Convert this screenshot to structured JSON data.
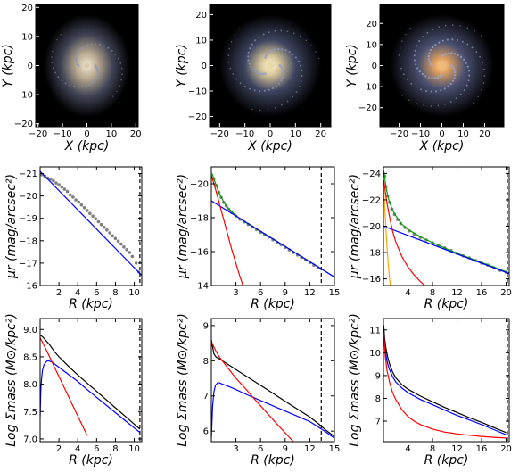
{
  "images": [
    {
      "xlabel": "X (kpc)",
      "ylabel": "Y (kpc)",
      "xticks": [
        "−20",
        "−10",
        "0",
        "10",
        "20"
      ],
      "yticks": [
        "20",
        "10",
        "0",
        "−10",
        "−20"
      ],
      "xlim": [
        -21,
        21
      ],
      "ylim": [
        -21,
        21
      ],
      "tickvals_x": [
        -20,
        -10,
        0,
        10,
        20
      ],
      "tickvals_y": [
        20,
        10,
        0,
        -10,
        -20
      ],
      "core_color": "#d8c9a8",
      "arm_color": "#8a96b8"
    },
    {
      "xlabel": "X (kpc)",
      "ylabel": "Y (kpc)",
      "xticks": [
        "−20",
        "−10",
        "0",
        "10",
        "20"
      ],
      "yticks": [
        "20",
        "10",
        "0",
        "−10",
        "−20"
      ],
      "xlim": [
        -24,
        24
      ],
      "ylim": [
        -24,
        24
      ],
      "tickvals_x": [
        -20,
        -10,
        0,
        10,
        20
      ],
      "tickvals_y": [
        20,
        10,
        0,
        -10,
        -20
      ],
      "core_color": "#e8d9a8",
      "arm_color": "#8e9cc4"
    },
    {
      "xlabel": "X (kpc)",
      "ylabel": "Y (kpc)",
      "xticks": [
        "−20",
        "−10",
        "0",
        "10",
        "20"
      ],
      "yticks": [
        "20",
        "10",
        "0",
        "−10",
        "−20"
      ],
      "xlim": [
        -29,
        29
      ],
      "ylim": [
        -29,
        29
      ],
      "tickvals_x": [
        -20,
        -10,
        0,
        10,
        20
      ],
      "tickvals_y": [
        20,
        10,
        0,
        -10,
        -20
      ],
      "core_color": "#f0b878",
      "arm_color": "#9aa8d0"
    }
  ],
  "chart_data": [
    {
      "type": "scatter",
      "xlabel": "R (kpc)",
      "ylabel": "μr (mag/arcsec²)",
      "xlim": [
        0,
        10.8
      ],
      "ylim": [
        -21.3,
        -16
      ],
      "y_inverted": true,
      "xticks": [
        2,
        4,
        6,
        8,
        10
      ],
      "yticks": [
        -21,
        -20,
        -19,
        -18,
        -17,
        -16
      ],
      "xticklabels": [
        "2",
        "4",
        "6",
        "8",
        "10"
      ],
      "yticklabels": [
        "−21",
        "−20",
        "−19",
        "−18",
        "−17",
        "−16"
      ],
      "vline": 10.6,
      "points": [
        [
          0.2,
          -20.95
        ],
        [
          0.5,
          -20.88
        ],
        [
          0.8,
          -20.8
        ],
        [
          1.1,
          -20.75
        ],
        [
          1.4,
          -20.68
        ],
        [
          1.7,
          -20.58
        ],
        [
          2.0,
          -20.5
        ],
        [
          2.3,
          -20.4
        ],
        [
          2.6,
          -20.3
        ],
        [
          2.9,
          -20.2
        ],
        [
          3.2,
          -20.05
        ],
        [
          3.5,
          -19.95
        ],
        [
          3.8,
          -19.82
        ],
        [
          4.1,
          -19.72
        ],
        [
          4.4,
          -19.6
        ],
        [
          4.7,
          -19.48
        ],
        [
          5.0,
          -19.35
        ],
        [
          5.3,
          -19.22
        ],
        [
          5.6,
          -19.1
        ],
        [
          5.9,
          -18.98
        ],
        [
          6.2,
          -18.85
        ],
        [
          6.5,
          -18.72
        ],
        [
          6.8,
          -18.6
        ],
        [
          7.1,
          -18.48
        ],
        [
          7.4,
          -18.35
        ],
        [
          7.7,
          -18.22
        ],
        [
          8.0,
          -18.1
        ],
        [
          8.3,
          -17.98
        ],
        [
          8.6,
          -17.85
        ],
        [
          8.9,
          -17.72
        ],
        [
          9.2,
          -17.6
        ],
        [
          9.5,
          -17.48
        ],
        [
          9.8,
          -17.3
        ],
        [
          10.2,
          -17.0
        ],
        [
          10.5,
          -16.6
        ]
      ],
      "lines": [
        {
          "color": "#0000ff",
          "x": [
            0,
            10.8
          ],
          "y": [
            -21.1,
            -16.45
          ]
        }
      ]
    },
    {
      "type": "scatter",
      "xlabel": "R (kpc)",
      "ylabel": "μr (mag/arcsec²)",
      "xlim": [
        0,
        15
      ],
      "ylim": [
        -21,
        -14
      ],
      "y_inverted": true,
      "xticks": [
        3,
        6,
        9,
        12,
        15
      ],
      "yticks": [
        -20,
        -18,
        -16,
        -14
      ],
      "xticklabels": [
        "3",
        "6",
        "9",
        "12",
        "15"
      ],
      "yticklabels": [
        "−20",
        "−18",
        "−16",
        "−14"
      ],
      "vline": 13.4,
      "points": [
        [
          0.3,
          -20.3
        ],
        [
          0.6,
          -19.9
        ],
        [
          0.9,
          -19.5
        ],
        [
          1.2,
          -19.2
        ],
        [
          1.5,
          -18.9
        ],
        [
          1.8,
          -18.7
        ],
        [
          2.1,
          -18.5
        ],
        [
          2.5,
          -18.3
        ],
        [
          3.0,
          -18.1
        ],
        [
          3.5,
          -17.9
        ],
        [
          4.0,
          -17.75
        ],
        [
          4.5,
          -17.6
        ],
        [
          5.0,
          -17.45
        ],
        [
          5.5,
          -17.3
        ],
        [
          6.0,
          -17.15
        ],
        [
          6.5,
          -17.0
        ],
        [
          7.0,
          -16.85
        ],
        [
          7.5,
          -16.7
        ],
        [
          8.0,
          -16.55
        ],
        [
          8.5,
          -16.4
        ],
        [
          9.0,
          -16.25
        ],
        [
          9.5,
          -16.1
        ],
        [
          10.0,
          -15.95
        ],
        [
          10.5,
          -15.8
        ],
        [
          11.0,
          -15.65
        ],
        [
          11.5,
          -15.5
        ],
        [
          12.0,
          -15.35
        ],
        [
          12.5,
          -15.2
        ],
        [
          13.0,
          -15.05
        ]
      ],
      "lines": [
        {
          "color": "#00a000",
          "x": [
            0.1,
            0.3,
            0.6,
            1.0,
            1.5,
            2.0,
            2.5,
            3.0,
            4.0,
            5.0,
            6.0,
            8.0,
            10.0,
            12.0,
            14.0,
            15.0
          ],
          "y": [
            -20.6,
            -20.3,
            -19.9,
            -19.4,
            -18.95,
            -18.6,
            -18.35,
            -18.12,
            -17.78,
            -17.48,
            -17.18,
            -16.6,
            -16.0,
            -15.4,
            -14.8,
            -14.5
          ]
        },
        {
          "color": "#0000ff",
          "x": [
            0,
            15
          ],
          "y": [
            -19.0,
            -14.5
          ]
        },
        {
          "color": "#ff0000",
          "x": [
            0,
            0.5,
            1.0,
            1.5,
            2.0,
            2.5,
            3.0,
            3.5,
            4.0
          ],
          "y": [
            -20.5,
            -19.7,
            -18.8,
            -17.9,
            -17.0,
            -16.1,
            -15.3,
            -14.5,
            -13.8
          ]
        }
      ]
    },
    {
      "type": "scatter",
      "xlabel": "R (kpc)",
      "ylabel": "μr (mag/arcsec²)",
      "xlim": [
        0,
        20.5
      ],
      "ylim": [
        -24.5,
        -15.5
      ],
      "y_inverted": true,
      "xticks": [
        4,
        8,
        12,
        16,
        20
      ],
      "yticks": [
        -24,
        -22,
        -20,
        -18,
        -16
      ],
      "xticklabels": [
        "4",
        "8",
        "12",
        "16",
        "20"
      ],
      "yticklabels": [
        "−24",
        "−22",
        "−20",
        "−18",
        "−16"
      ],
      "vline": 20.2,
      "points": [
        [
          0.2,
          -23.8
        ],
        [
          0.4,
          -23.0
        ],
        [
          0.7,
          -22.3
        ],
        [
          1.0,
          -21.8
        ],
        [
          1.4,
          -21.3
        ],
        [
          1.8,
          -20.9
        ],
        [
          2.3,
          -20.5
        ],
        [
          2.8,
          -20.2
        ],
        [
          3.5,
          -19.9
        ],
        [
          4.2,
          -19.65
        ],
        [
          5.0,
          -19.4
        ],
        [
          6.0,
          -19.15
        ],
        [
          7.0,
          -18.95
        ],
        [
          8.0,
          -18.75
        ],
        [
          9.0,
          -18.55
        ],
        [
          10.0,
          -18.35
        ],
        [
          11.0,
          -18.15
        ],
        [
          12.0,
          -17.95
        ],
        [
          13.0,
          -17.75
        ],
        [
          14.0,
          -17.6
        ],
        [
          15.0,
          -17.4
        ],
        [
          16.0,
          -17.2
        ],
        [
          17.0,
          -17.05
        ],
        [
          18.0,
          -16.85
        ],
        [
          19.0,
          -16.65
        ],
        [
          20.0,
          -16.5
        ]
      ],
      "lines": [
        {
          "color": "#00a000",
          "x": [
            0.05,
            0.2,
            0.4,
            0.7,
            1.0,
            1.5,
            2.0,
            3.0,
            4.0,
            6.0,
            8.0,
            10.0,
            12.0,
            14.0,
            16.0,
            18.0,
            20.0,
            20.5
          ],
          "y": [
            -24.2,
            -23.7,
            -23.0,
            -22.3,
            -21.8,
            -21.2,
            -20.8,
            -20.15,
            -19.75,
            -19.2,
            -18.75,
            -18.35,
            -17.95,
            -17.6,
            -17.25,
            -16.9,
            -16.55,
            -16.45
          ]
        },
        {
          "color": "#0000ff",
          "x": [
            0,
            20.5
          ],
          "y": [
            -20.0,
            -16.4
          ]
        },
        {
          "color": "#ff0000",
          "x": [
            0.05,
            0.3,
            0.6,
            1.0,
            1.5,
            2.0,
            3.0,
            4.0,
            5.0,
            6.0,
            7.0
          ],
          "y": [
            -23.5,
            -22.6,
            -21.7,
            -20.7,
            -19.6,
            -18.8,
            -17.7,
            -16.9,
            -16.3,
            -15.8,
            -15.4
          ]
        },
        {
          "color": "#ffa500",
          "x": [
            0.05,
            0.2,
            0.4,
            0.6,
            0.8,
            1.0,
            1.2
          ],
          "y": [
            -23.0,
            -21.5,
            -19.8,
            -18.3,
            -17.0,
            -16.0,
            -15.2
          ]
        }
      ]
    },
    {
      "type": "line",
      "xlabel": "R (kpc)",
      "ylabel": "Log Σmass (M⊙/kpc²)",
      "xlim": [
        0,
        10.8
      ],
      "ylim": [
        6.95,
        9.2
      ],
      "xticks": [
        2,
        4,
        6,
        8,
        10
      ],
      "yticks": [
        7.0,
        7.5,
        8.0,
        8.5,
        9.0
      ],
      "xticklabels": [
        "2",
        "4",
        "6",
        "8",
        "10"
      ],
      "yticklabels": [
        "7.0",
        "7.5",
        "8.0",
        "8.5",
        "9.0"
      ],
      "vline": 10.6,
      "lines": [
        {
          "color": "#000000",
          "x": [
            0,
            0.3,
            0.6,
            1.0,
            1.5,
            2.0,
            3.0,
            4.0,
            5.0,
            6.0,
            7.0,
            8.0,
            9.0,
            10.0,
            10.6
          ],
          "y": [
            8.9,
            8.86,
            8.8,
            8.72,
            8.6,
            8.5,
            8.33,
            8.17,
            8.02,
            7.87,
            7.72,
            7.57,
            7.42,
            7.27,
            7.18
          ]
        },
        {
          "color": "#0000ff",
          "x": [
            0,
            0.08,
            0.15,
            0.25,
            0.4,
            0.6,
            0.8,
            1.0,
            1.3,
            1.6,
            2.0,
            3.0,
            4.0,
            5.0,
            6.0,
            7.0,
            8.0,
            9.0,
            10.0,
            10.6
          ],
          "y": [
            7.4,
            7.9,
            8.1,
            8.25,
            8.35,
            8.4,
            8.43,
            8.42,
            8.4,
            8.36,
            8.31,
            8.18,
            8.05,
            7.9,
            7.76,
            7.62,
            7.48,
            7.34,
            7.2,
            7.12
          ]
        },
        {
          "color": "#ff0000",
          "x": [
            0,
            0.5,
            1.0,
            1.5,
            2.0,
            2.5,
            3.0,
            3.5,
            4.0,
            4.5,
            5.0
          ],
          "y": [
            8.85,
            8.68,
            8.5,
            8.32,
            8.14,
            7.96,
            7.78,
            7.6,
            7.42,
            7.24,
            7.06
          ]
        }
      ]
    },
    {
      "type": "line",
      "xlabel": "R (kpc)",
      "ylabel": "Log Σmass (M⊙/kpc²)",
      "xlim": [
        0,
        15
      ],
      "ylim": [
        5.7,
        9.2
      ],
      "xticks": [
        3,
        6,
        9,
        12,
        15
      ],
      "yticks": [
        6,
        7,
        8,
        9
      ],
      "xticklabels": [
        "3",
        "6",
        "9",
        "12",
        "15"
      ],
      "yticklabels": [
        "6",
        "7",
        "8",
        "9"
      ],
      "vline": 13.4,
      "lines": [
        {
          "color": "#000000",
          "x": [
            0,
            0.3,
            0.6,
            1.0,
            2.0,
            3.0,
            4.0,
            5.0,
            6.0,
            7.0,
            8.0,
            9.0,
            10.0,
            11.0,
            12.0,
            13.0,
            14.0,
            15.0
          ],
          "y": [
            8.6,
            8.2,
            8.1,
            8.05,
            7.9,
            7.75,
            7.6,
            7.45,
            7.3,
            7.15,
            7.0,
            6.85,
            6.7,
            6.55,
            6.4,
            6.22,
            6.02,
            5.85
          ]
        },
        {
          "color": "#0000ff",
          "x": [
            0,
            0.15,
            0.3,
            0.5,
            0.8,
            1.0,
            1.5,
            2.0,
            3.0,
            4.0,
            5.0,
            6.0,
            7.0,
            8.0,
            9.0,
            10.0,
            11.0,
            12.0,
            13.0,
            14.0,
            15.0
          ],
          "y": [
            5.8,
            6.7,
            7.1,
            7.3,
            7.38,
            7.37,
            7.32,
            7.28,
            7.18,
            7.07,
            6.97,
            6.87,
            6.77,
            6.67,
            6.57,
            6.47,
            6.37,
            6.27,
            6.12,
            5.97,
            5.8
          ]
        },
        {
          "color": "#ff0000",
          "x": [
            0,
            0.5,
            1.0,
            2.0,
            3.0,
            4.0,
            5.0,
            6.0,
            7.0,
            8.0,
            9.0,
            10.0
          ],
          "y": [
            8.55,
            8.3,
            8.1,
            7.8,
            7.5,
            7.25,
            6.98,
            6.72,
            6.46,
            6.2,
            5.95,
            5.7
          ]
        }
      ]
    },
    {
      "type": "line",
      "xlabel": "R (kpc)",
      "ylabel": "Log Σmass (M⊙/kpc²)",
      "xlim": [
        0,
        20.5
      ],
      "ylim": [
        6.1,
        11.5
      ],
      "xticks": [
        4,
        8,
        12,
        16,
        20
      ],
      "yticks": [
        7,
        8,
        9,
        10,
        11
      ],
      "xticklabels": [
        "4",
        "8",
        "12",
        "16",
        "20"
      ],
      "yticklabels": [
        "7",
        "8",
        "9",
        "10",
        "11"
      ],
      "vline": 20.2,
      "lines": [
        {
          "color": "#000000",
          "x": [
            0.05,
            0.2,
            0.4,
            0.7,
            1.0,
            1.5,
            2.0,
            3.0,
            4.0,
            6.0,
            8.0,
            10.0,
            12.0,
            14.0,
            16.0,
            18.0,
            20.0
          ],
          "y": [
            11.2,
            10.6,
            10.2,
            9.8,
            9.5,
            9.15,
            8.9,
            8.6,
            8.4,
            8.1,
            7.85,
            7.6,
            7.38,
            7.15,
            6.95,
            6.72,
            6.5
          ]
        },
        {
          "color": "#0000ff",
          "x": [
            0.05,
            0.2,
            0.4,
            0.7,
            1.0,
            1.5,
            2.0,
            3.0,
            4.0,
            6.0,
            8.0,
            10.0,
            12.0,
            14.0,
            16.0,
            18.0,
            20.0
          ],
          "y": [
            10.8,
            10.3,
            9.9,
            9.5,
            9.25,
            8.95,
            8.72,
            8.45,
            8.25,
            7.95,
            7.72,
            7.48,
            7.25,
            7.05,
            6.85,
            6.63,
            6.4
          ]
        },
        {
          "color": "#ff0000",
          "x": [
            0.05,
            0.3,
            0.6,
            1.0,
            1.5,
            2.0,
            3.0,
            4.0,
            5.0,
            6.0,
            8.0,
            10.0,
            12.0,
            14.0,
            16.0,
            18.0,
            20.0
          ],
          "y": [
            10.9,
            9.8,
            9.2,
            8.7,
            8.25,
            7.95,
            7.5,
            7.2,
            7.0,
            6.85,
            6.65,
            6.52,
            6.44,
            6.38,
            6.33,
            6.29,
            6.26
          ]
        }
      ]
    }
  ]
}
